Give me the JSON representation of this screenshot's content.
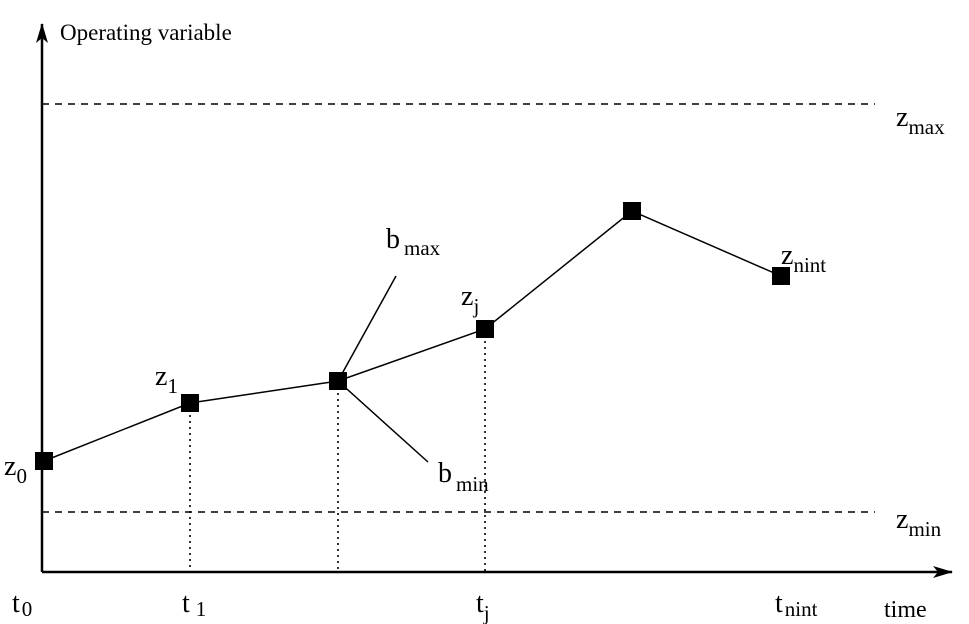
{
  "y_axis_label": "Operating variable",
  "x_axis_label": "time",
  "bounds": {
    "upper": {
      "base": "z",
      "sub": "max"
    },
    "lower": {
      "base": "z",
      "sub": "min"
    }
  },
  "time_ticks": [
    {
      "base": "t",
      "sub": "0"
    },
    {
      "base": "t",
      "sub": "1"
    },
    {
      "base": "t",
      "sub": "j"
    },
    {
      "base": "t",
      "sub": "nint"
    }
  ],
  "points": [
    {
      "base": "z",
      "sub": "0"
    },
    {
      "base": "z",
      "sub": "1"
    },
    {
      "base": "",
      "sub": ""
    },
    {
      "base": "z",
      "sub": "j"
    },
    {
      "base": "",
      "sub": ""
    },
    {
      "base": "z",
      "sub": "nint"
    }
  ],
  "slope_labels": [
    {
      "base": "b",
      "sub": "max"
    },
    {
      "base": "b",
      "sub": "min"
    }
  ]
}
